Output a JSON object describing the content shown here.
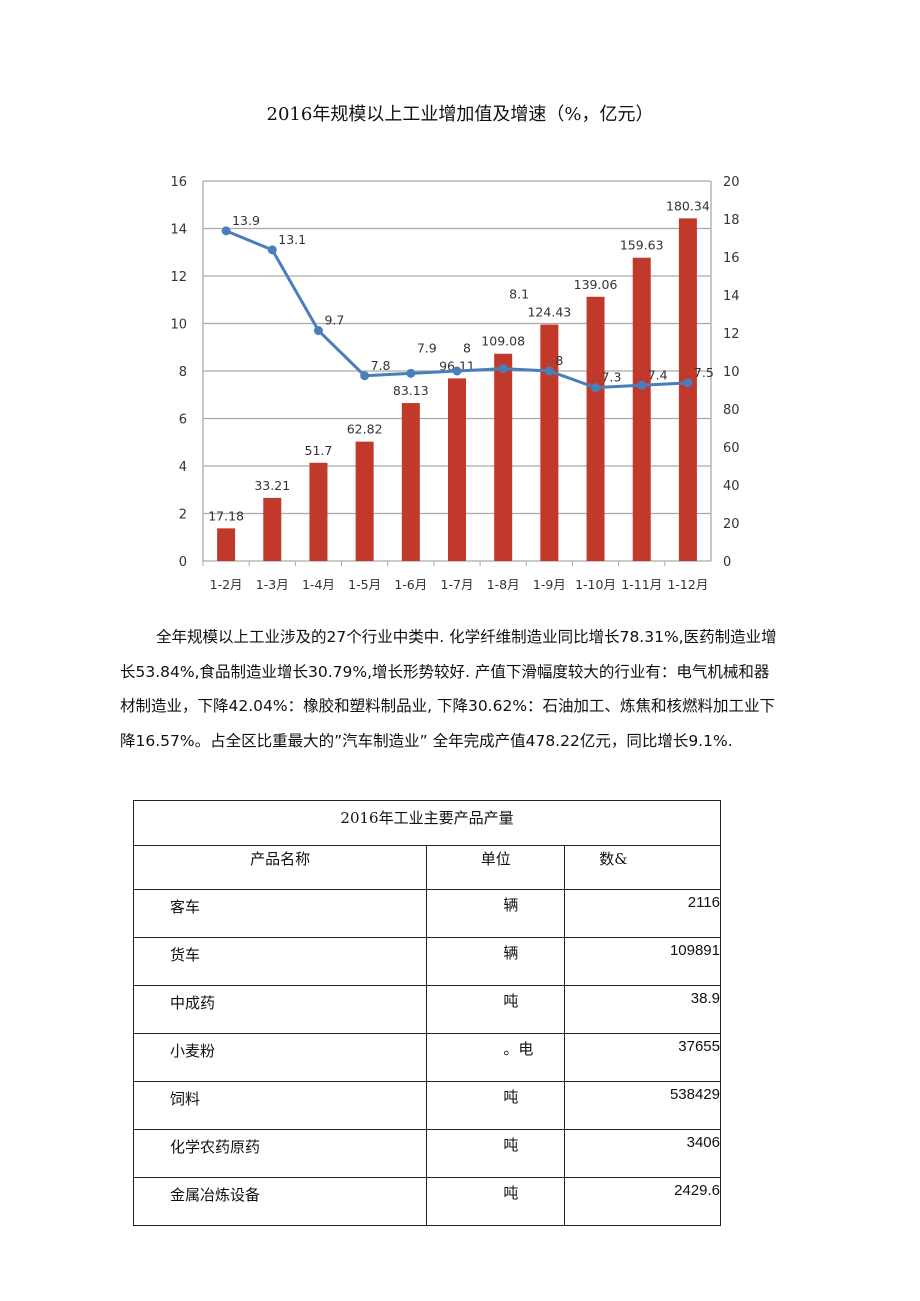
{
  "title": "2016年规模以上工业增加值及增速（%，亿元）",
  "chart_data": {
    "type": "bar+line",
    "categories": [
      "1-2月",
      "1-3月",
      "1-4月",
      "1-5月",
      "1-6月",
      "1-7月",
      "1-8月",
      "1-9月",
      "1-10月",
      "1-11月",
      "1-12月"
    ],
    "series": [
      {
        "type": "bar",
        "axis": "right",
        "color": "#c0392b",
        "values": [
          17.18,
          33.21,
          51.7,
          62.82,
          83.13,
          96.11,
          109.08,
          124.43,
          139.06,
          159.63,
          180.34
        ]
      },
      {
        "type": "line",
        "axis": "left",
        "color": "#4a7ebb",
        "values": [
          13.9,
          13.1,
          9.7,
          7.8,
          7.9,
          8,
          8.1,
          8,
          7.3,
          7.4,
          7.5
        ]
      }
    ],
    "left_axis": {
      "range": [
        0,
        16
      ],
      "ticks": [
        0,
        2,
        4,
        6,
        8,
        10,
        12,
        14,
        16
      ]
    },
    "right_axis": {
      "range": [
        0,
        200
      ],
      "ticks": [
        0,
        20,
        40,
        60,
        80,
        100,
        120,
        140,
        160,
        180,
        200
      ]
    },
    "grid": true
  },
  "paragraph": "全年规模以上工业涉及的27个行业中类中. 化学纤维制造业同比增长78.31%,医药制造业增长53.84%,食品制造业增长30.79%,增长形势较好. 产值下滑幅度较大的行业有：电气机械和器材制造业，下降42.04%：橡胶和塑料制品业, 下降30.62%：石油加工、炼焦和核燃料加工业下降16.57%。占全区比重最大的”汽车制造业” 全年完成产值478.22亿元，同比增长9.1%.",
  "table": {
    "caption": "2016年工业主要产品产量",
    "headers": [
      "产品名称",
      "单位",
      "数&"
    ],
    "rows": [
      [
        "客车",
        "辆",
        "2116"
      ],
      [
        "货车",
        "辆",
        "109891"
      ],
      [
        "中成药",
        "吨",
        "38.9"
      ],
      [
        "小麦粉",
        "。电",
        "37655"
      ],
      [
        "饲料",
        "吨",
        "538429"
      ],
      [
        "化学农药原药",
        "吨",
        "3406"
      ],
      [
        "金属冶炼设备",
        "吨",
        "2429.6"
      ]
    ]
  }
}
